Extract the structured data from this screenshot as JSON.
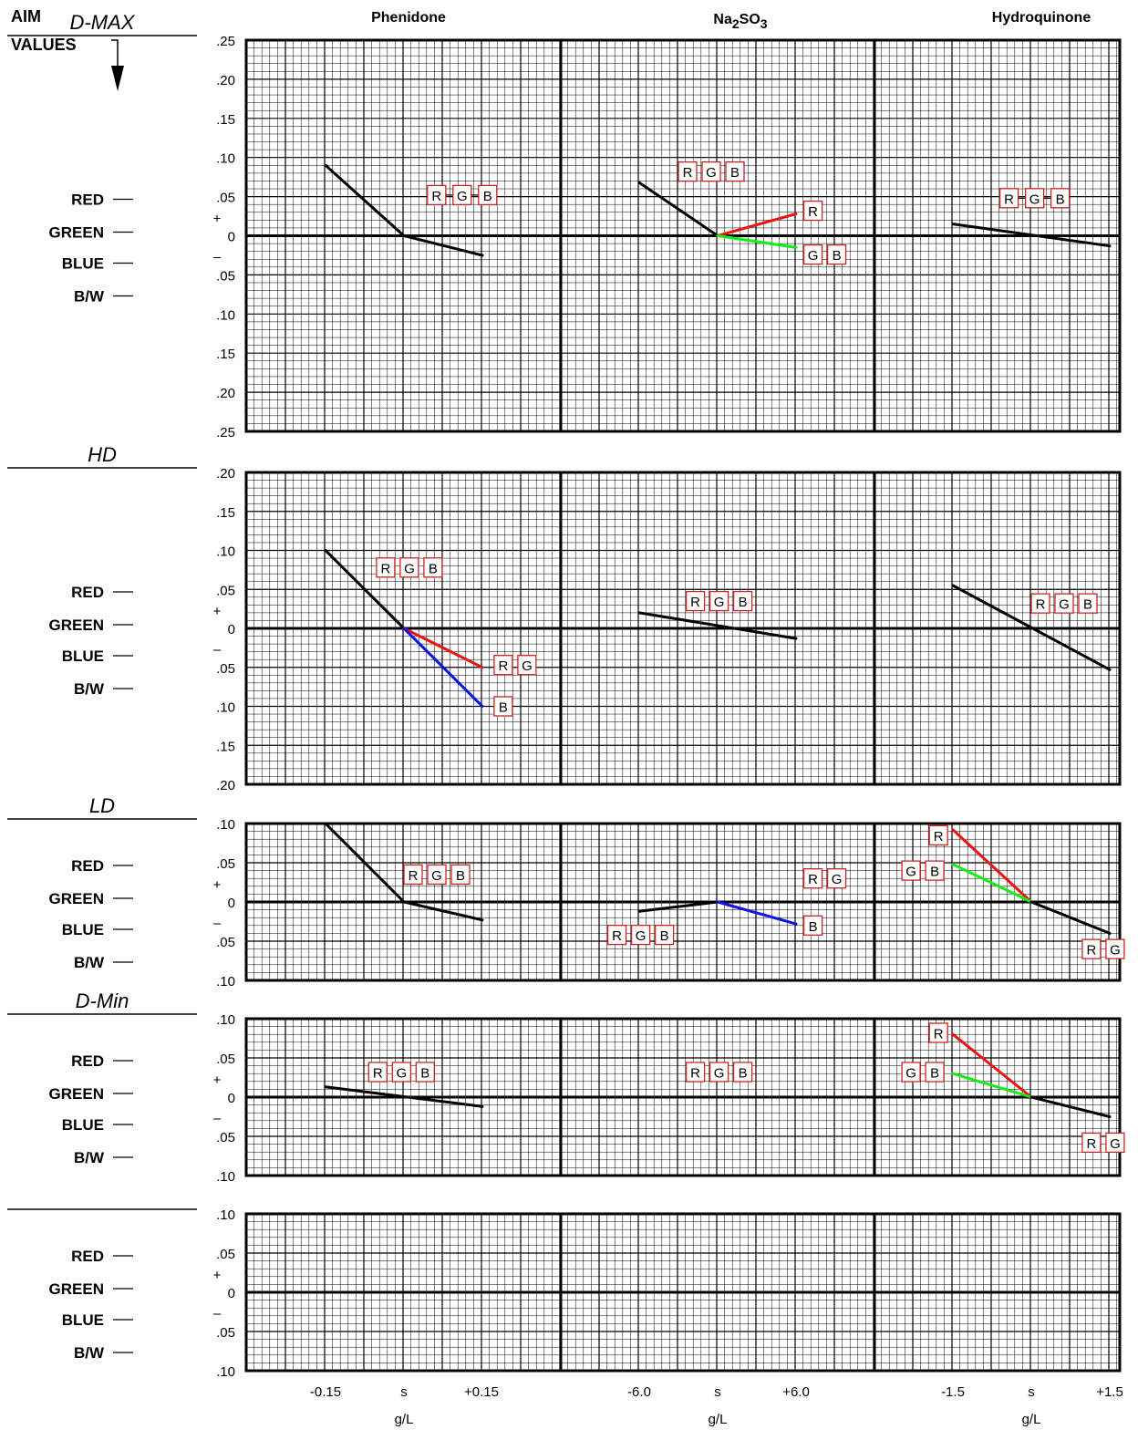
{
  "header": {
    "aim_line1": "AIM",
    "aim_line2": "VALUES",
    "columns": [
      {
        "label": "Phenidone"
      },
      {
        "label": "Na",
        "sub1": "2",
        "mid": "SO",
        "sub2": "3"
      },
      {
        "label": "Hydroquinone"
      }
    ]
  },
  "side_labels": [
    "RED",
    "GREEN",
    "BLUE",
    "B/W"
  ],
  "plus_sign": "+",
  "minus_sign": "–",
  "x_ticks": [
    [
      "-0.15",
      "s",
      "+0.15"
    ],
    [
      "-6.0",
      "s",
      "+6.0"
    ],
    [
      "-1.5",
      "s",
      "+1.5"
    ]
  ],
  "x_unit": "g/L",
  "colors": {
    "R": "#ee1111",
    "G": "#11ee11",
    "B": "#1111ee",
    "neutral": "#000000",
    "box": "#cc2222"
  },
  "chart_data": [
    {
      "type": "line",
      "title": "D-MAX",
      "y_labels_top": [
        ".25",
        ".20",
        ".15",
        ".10",
        ".05"
      ],
      "y_labels_bottom": [
        ".05",
        ".10",
        ".15",
        ".20",
        ".25"
      ],
      "zero_label": "0",
      "ylim": [
        -0.25,
        0.25
      ],
      "x_steps": [
        -1,
        0,
        1
      ],
      "columns": [
        {
          "lines": [
            {
              "color": "neutral",
              "points": [
                [
                  -1,
                  0.09
                ],
                [
                  0,
                  0
                ],
                [
                  1,
                  -0.025
                ]
              ]
            }
          ],
          "boxes": [
            {
              "letters": [
                "R",
                "G",
                "B"
              ],
              "x": 0.3,
              "y": 0.052,
              "dashes": true
            }
          ]
        },
        {
          "lines": [
            {
              "color": "neutral",
              "points": [
                [
                  -1,
                  0.068
                ],
                [
                  0,
                  0
                ]
              ]
            },
            {
              "color": "R",
              "points": [
                [
                  0,
                  0
                ],
                [
                  1,
                  0.028
                ]
              ]
            },
            {
              "color": "G",
              "points": [
                [
                  0,
                  0
                ],
                [
                  1,
                  -0.015
                ]
              ]
            }
          ],
          "boxes": [
            {
              "letters": [
                "R",
                "G",
                "B"
              ],
              "x": -0.5,
              "y": 0.082,
              "dashes": false
            },
            {
              "letters": [
                "R"
              ],
              "x": 1.1,
              "y": 0.032,
              "dashes": false
            },
            {
              "letters": [
                "G",
                "B"
              ],
              "x": 1.1,
              "y": -0.024,
              "dashes": false
            }
          ]
        },
        {
          "lines": [
            {
              "color": "neutral",
              "points": [
                [
                  -1,
                  0.015
                ],
                [
                  1,
                  -0.013
                ]
              ]
            }
          ],
          "boxes": [
            {
              "letters": [
                "R",
                "G",
                "B"
              ],
              "x": -0.4,
              "y": 0.048,
              "dashes": true
            }
          ]
        }
      ]
    },
    {
      "type": "line",
      "title": "HD",
      "y_labels_top": [
        ".20",
        ".15",
        ".10",
        ".05"
      ],
      "y_labels_bottom": [
        ".05",
        ".10",
        ".15",
        ".20"
      ],
      "zero_label": "0",
      "ylim": [
        -0.2,
        0.2
      ],
      "x_steps": [
        -1,
        0,
        1
      ],
      "columns": [
        {
          "lines": [
            {
              "color": "neutral",
              "points": [
                [
                  -1,
                  0.1
                ],
                [
                  0,
                  0
                ]
              ]
            },
            {
              "color": "R",
              "points": [
                [
                  0,
                  0
                ],
                [
                  1,
                  -0.05
                ]
              ]
            },
            {
              "color": "B",
              "points": [
                [
                  0,
                  0
                ],
                [
                  1,
                  -0.1
                ]
              ]
            }
          ],
          "boxes": [
            {
              "letters": [
                "R",
                "G",
                "B"
              ],
              "x": -0.35,
              "y": 0.078,
              "dashes": false
            },
            {
              "letters": [
                "R",
                "G"
              ],
              "x": 1.15,
              "y": -0.047,
              "dashes": false
            },
            {
              "letters": [
                "B"
              ],
              "x": 1.15,
              "y": -0.1,
              "dashes": false
            }
          ]
        },
        {
          "lines": [
            {
              "color": "neutral",
              "points": [
                [
                  -1,
                  0.02
                ],
                [
                  1,
                  -0.013
                ]
              ]
            }
          ],
          "boxes": [
            {
              "letters": [
                "R",
                "G",
                "B"
              ],
              "x": -0.4,
              "y": 0.035,
              "dashes": false
            }
          ]
        },
        {
          "lines": [
            {
              "color": "neutral",
              "points": [
                [
                  -1,
                  0.055
                ],
                [
                  1,
                  -0.053
                ]
              ]
            }
          ],
          "boxes": [
            {
              "letters": [
                "R",
                "G",
                "B"
              ],
              "x": 0.0,
              "y": 0.032,
              "dashes": false
            }
          ]
        }
      ]
    },
    {
      "type": "line",
      "title": "LD",
      "y_labels_top": [
        ".10",
        ".05"
      ],
      "y_labels_bottom": [
        ".05",
        ".10"
      ],
      "zero_label": "0",
      "ylim": [
        -0.1,
        0.1
      ],
      "x_steps": [
        -1,
        0,
        1
      ],
      "columns": [
        {
          "lines": [
            {
              "color": "neutral",
              "points": [
                [
                  -1,
                  0.1
                ],
                [
                  0,
                  0
                ],
                [
                  1,
                  -0.023
                ]
              ]
            }
          ],
          "boxes": [
            {
              "letters": [
                "R",
                "G",
                "B"
              ],
              "x": 0.0,
              "y": 0.035,
              "dashes": false
            }
          ]
        },
        {
          "lines": [
            {
              "color": "neutral",
              "points": [
                [
                  -1,
                  -0.012
                ],
                [
                  0,
                  0
                ]
              ]
            },
            {
              "color": "B",
              "points": [
                [
                  0,
                  0
                ],
                [
                  1,
                  -0.028
                ]
              ]
            }
          ],
          "boxes": [
            {
              "letters": [
                "R",
                "G",
                "B"
              ],
              "x": -1.4,
              "y": -0.042,
              "dashes": false
            },
            {
              "letters": [
                "R",
                "G"
              ],
              "x": 1.1,
              "y": 0.03,
              "dashes": false
            },
            {
              "letters": [
                "B"
              ],
              "x": 1.1,
              "y": -0.03,
              "dashes": false
            }
          ]
        },
        {
          "lines": [
            {
              "color": "R",
              "points": [
                [
                  -1,
                  0.092
                ],
                [
                  0,
                  0
                ]
              ]
            },
            {
              "color": "G",
              "points": [
                [
                  -1,
                  0.048
                ],
                [
                  0,
                  0
                ]
              ]
            },
            {
              "color": "neutral",
              "points": [
                [
                  0,
                  0
                ],
                [
                  1,
                  -0.04
                ]
              ]
            }
          ],
          "boxes": [
            {
              "letters": [
                "R"
              ],
              "x": -1.3,
              "y": 0.085,
              "dashes": false
            },
            {
              "letters": [
                "G",
                "B"
              ],
              "x": -1.65,
              "y": 0.04,
              "dashes": false
            },
            {
              "letters": [
                "R",
                "G"
              ],
              "x": 0.65,
              "y": -0.06,
              "dashes": false
            }
          ]
        }
      ]
    },
    {
      "type": "line",
      "title": "D-Min",
      "y_labels_top": [
        ".10",
        ".05"
      ],
      "y_labels_bottom": [
        ".05",
        ".10"
      ],
      "zero_label": "0",
      "ylim": [
        -0.1,
        0.1
      ],
      "x_steps": [
        -1,
        0,
        1
      ],
      "columns": [
        {
          "lines": [
            {
              "color": "neutral",
              "points": [
                [
                  -1,
                  0.013
                ],
                [
                  1,
                  -0.012
                ]
              ]
            }
          ],
          "boxes": [
            {
              "letters": [
                "R",
                "G",
                "B"
              ],
              "x": -0.45,
              "y": 0.032,
              "dashes": false
            }
          ]
        },
        {
          "lines": [],
          "boxes": [
            {
              "letters": [
                "R",
                "G",
                "B"
              ],
              "x": -0.4,
              "y": 0.032,
              "dashes": false
            }
          ]
        },
        {
          "lines": [
            {
              "color": "R",
              "points": [
                [
                  -1,
                  0.08
                ],
                [
                  0,
                  0
                ]
              ]
            },
            {
              "color": "G",
              "points": [
                [
                  -1,
                  0.03
                ],
                [
                  0,
                  0
                ]
              ]
            },
            {
              "color": "neutral",
              "points": [
                [
                  0,
                  0
                ],
                [
                  1,
                  -0.025
                ]
              ]
            }
          ],
          "boxes": [
            {
              "letters": [
                "R"
              ],
              "x": -1.3,
              "y": 0.082,
              "dashes": false
            },
            {
              "letters": [
                "G",
                "B"
              ],
              "x": -1.65,
              "y": 0.032,
              "dashes": false
            },
            {
              "letters": [
                "R",
                "G"
              ],
              "x": 0.65,
              "y": -0.058,
              "dashes": false
            }
          ]
        }
      ]
    },
    {
      "type": "line",
      "title": "",
      "y_labels_top": [
        ".10",
        ".05"
      ],
      "y_labels_bottom": [
        ".05",
        ".10"
      ],
      "zero_label": "0",
      "ylim": [
        -0.1,
        0.1
      ],
      "x_steps": [
        -1,
        0,
        1
      ],
      "columns": [
        {
          "lines": [],
          "boxes": []
        },
        {
          "lines": [],
          "boxes": []
        },
        {
          "lines": [],
          "boxes": []
        }
      ]
    }
  ]
}
